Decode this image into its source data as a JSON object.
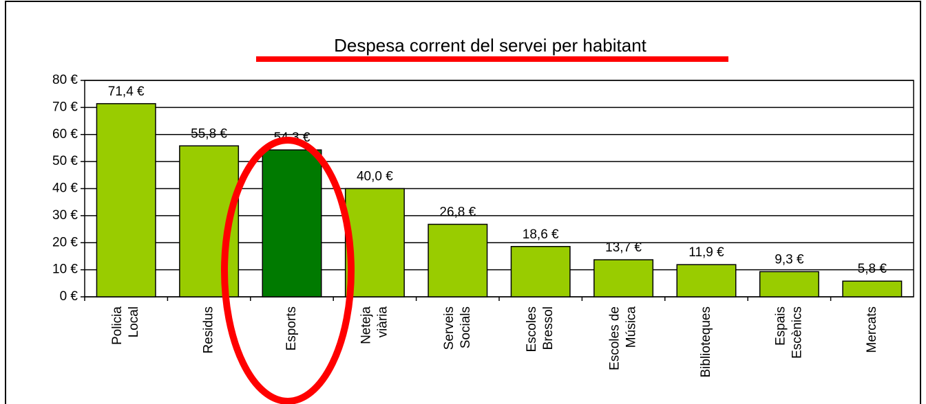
{
  "chart_data": {
    "type": "bar",
    "title": "Despesa corrent del servei per habitant",
    "categories": [
      [
        "Policia",
        "Local"
      ],
      [
        "Residus"
      ],
      [
        "Esports"
      ],
      [
        "Neteja",
        "viària"
      ],
      [
        "Serveis",
        "Socials"
      ],
      [
        "Escoles",
        "Bressol"
      ],
      [
        "Escoles de",
        "Música"
      ],
      [
        "Biblioteques"
      ],
      [
        "Espais",
        "Escènics"
      ],
      [
        "Mercats"
      ]
    ],
    "values": [
      71.4,
      55.8,
      54.3,
      40.0,
      26.8,
      18.6,
      13.7,
      11.9,
      9.3,
      5.8
    ],
    "value_labels": [
      "71,4 €",
      "55,8 €",
      "54,3 €",
      "40,0 €",
      "26,8 €",
      "18,6 €",
      "13,7 €",
      "11,9 €",
      "9,3 €",
      "5,8 €"
    ],
    "colors": [
      "#99cc00",
      "#99cc00",
      "#007a00",
      "#99cc00",
      "#99cc00",
      "#99cc00",
      "#99cc00",
      "#99cc00",
      "#99cc00",
      "#99cc00"
    ],
    "ylim": [
      0,
      80
    ],
    "yticks": [
      {
        "value": 0,
        "label": "0 €"
      },
      {
        "value": 10,
        "label": "10 €"
      },
      {
        "value": 20,
        "label": "20 €"
      },
      {
        "value": 30,
        "label": "30 €"
      },
      {
        "value": 40,
        "label": "40 €"
      },
      {
        "value": 50,
        "label": "50 €"
      },
      {
        "value": 60,
        "label": "60 €"
      },
      {
        "value": 70,
        "label": "70 €"
      },
      {
        "value": 80,
        "label": "80 €"
      }
    ],
    "grid": true
  }
}
